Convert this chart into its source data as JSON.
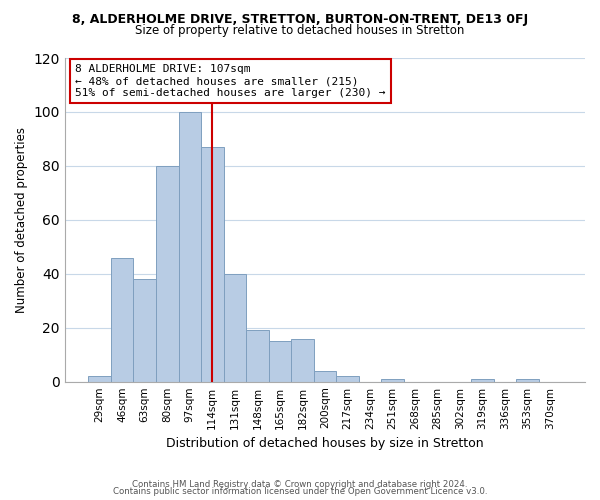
{
  "title": "8, ALDERHOLME DRIVE, STRETTON, BURTON-ON-TRENT, DE13 0FJ",
  "subtitle": "Size of property relative to detached houses in Stretton",
  "xlabel": "Distribution of detached houses by size in Stretton",
  "ylabel": "Number of detached properties",
  "bar_values": [
    2,
    46,
    38,
    80,
    100,
    87,
    40,
    19,
    15,
    16,
    4,
    2,
    0,
    1,
    0,
    0,
    0,
    1,
    0,
    1,
    0
  ],
  "bin_labels": [
    "29sqm",
    "46sqm",
    "63sqm",
    "80sqm",
    "97sqm",
    "114sqm",
    "131sqm",
    "148sqm",
    "165sqm",
    "182sqm",
    "200sqm",
    "217sqm",
    "234sqm",
    "251sqm",
    "268sqm",
    "285sqm",
    "302sqm",
    "319sqm",
    "336sqm",
    "353sqm",
    "370sqm"
  ],
  "bar_color": "#b8cce4",
  "bar_edge_color": "#7f9fbf",
  "vline_bin_index": 5,
  "vline_color": "#cc0000",
  "annotation_box_text": "8 ALDERHOLME DRIVE: 107sqm\n← 48% of detached houses are smaller (215)\n51% of semi-detached houses are larger (230) →",
  "annotation_box_facecolor": "#ffffff",
  "annotation_box_edgecolor": "#cc0000",
  "ylim": [
    0,
    120
  ],
  "yticks": [
    0,
    20,
    40,
    60,
    80,
    100,
    120
  ],
  "footer_line1": "Contains HM Land Registry data © Crown copyright and database right 2024.",
  "footer_line2": "Contains public sector information licensed under the Open Government Licence v3.0.",
  "background_color": "#ffffff",
  "grid_color": "#c8d8e8"
}
